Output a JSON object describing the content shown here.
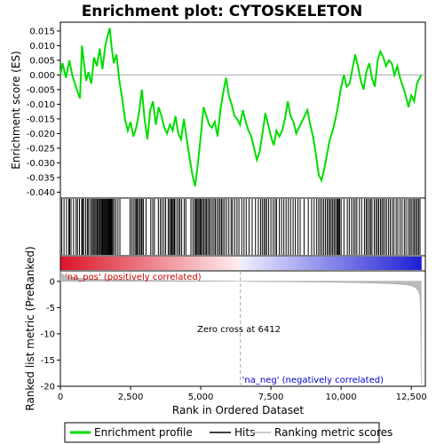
{
  "chart_data": {
    "type": "line",
    "title": "Enrichment plot: CYTOSKELETON",
    "top_panel": {
      "ylabel": "Enrichment score (ES)",
      "ylim": [
        -0.042,
        0.018
      ],
      "yticks": [
        0.015,
        0.01,
        0.005,
        0.0,
        -0.005,
        -0.01,
        -0.015,
        -0.02,
        -0.025,
        -0.03,
        -0.035,
        -0.04
      ],
      "ytick_labels": [
        "0.015",
        "0.010",
        "0.005",
        "0.000",
        "-0.005",
        "-0.010",
        "-0.015",
        "-0.020",
        "-0.025",
        "-0.030",
        "-0.035",
        "-0.040"
      ],
      "series": [
        {
          "name": "Enrichment profile",
          "color": "#00dd00",
          "x": [
            0,
            80,
            200,
            320,
            420,
            520,
            620,
            700,
            770,
            840,
            920,
            1000,
            1100,
            1200,
            1300,
            1400,
            1500,
            1600,
            1700,
            1760,
            1820,
            1900,
            2000,
            2100,
            2200,
            2300,
            2400,
            2500,
            2600,
            2700,
            2800,
            2900,
            3000,
            3100,
            3200,
            3300,
            3400,
            3500,
            3600,
            3700,
            3800,
            3900,
            4000,
            4100,
            4200,
            4300,
            4400,
            4500,
            4600,
            4700,
            4800,
            4900,
            5000,
            5100,
            5200,
            5300,
            5400,
            5500,
            5600,
            5700,
            5800,
            5900,
            6000,
            6100,
            6200,
            6300,
            6400,
            6500,
            6600,
            6700,
            6800,
            6900,
            7000,
            7100,
            7200,
            7300,
            7400,
            7500,
            7600,
            7700,
            7800,
            7900,
            8000,
            8100,
            8200,
            8300,
            8400,
            8500,
            8600,
            8700,
            8800,
            8900,
            9000,
            9100,
            9200,
            9300,
            9400,
            9500,
            9600,
            9700,
            9800,
            9900,
            10000,
            10100,
            10200,
            10300,
            10400,
            10500,
            10600,
            10700,
            10800,
            10900,
            11000,
            11100,
            11200,
            11300,
            11400,
            11500,
            11600,
            11700,
            11800,
            11900,
            12000,
            12100,
            12200,
            12300,
            12400,
            12500,
            12600,
            12700,
            12800,
            12850
          ],
          "y": [
            0.0,
            0.004,
            -0.001,
            0.005,
            0.0,
            -0.003,
            -0.006,
            -0.008,
            0.01,
            0.004,
            -0.002,
            0.001,
            -0.003,
            0.006,
            0.003,
            0.009,
            0.002,
            0.01,
            0.014,
            0.016,
            0.01,
            0.004,
            0.007,
            -0.002,
            -0.008,
            -0.015,
            -0.019,
            -0.016,
            -0.021,
            -0.018,
            -0.013,
            -0.005,
            -0.015,
            -0.022,
            -0.012,
            -0.009,
            -0.017,
            -0.011,
            -0.014,
            -0.018,
            -0.02,
            -0.017,
            -0.019,
            -0.014,
            -0.02,
            -0.022,
            -0.015,
            -0.022,
            -0.028,
            -0.034,
            -0.038,
            -0.03,
            -0.021,
            -0.011,
            -0.014,
            -0.017,
            -0.018,
            -0.016,
            -0.021,
            -0.012,
            -0.006,
            -0.001,
            -0.007,
            -0.01,
            -0.014,
            -0.015,
            -0.017,
            -0.012,
            -0.016,
            -0.019,
            -0.021,
            -0.025,
            -0.029,
            -0.026,
            -0.02,
            -0.013,
            -0.017,
            -0.021,
            -0.024,
            -0.019,
            -0.021,
            -0.019,
            -0.015,
            -0.009,
            -0.014,
            -0.016,
            -0.02,
            -0.018,
            -0.016,
            -0.014,
            -0.012,
            -0.017,
            -0.021,
            -0.027,
            -0.034,
            -0.036,
            -0.032,
            -0.027,
            -0.022,
            -0.019,
            -0.015,
            -0.01,
            -0.004,
            0.0,
            -0.004,
            -0.003,
            0.002,
            0.007,
            0.003,
            -0.002,
            -0.005,
            0.001,
            0.004,
            -0.001,
            -0.004,
            0.005,
            0.008,
            0.006,
            0.003,
            0.005,
            0.004,
            0.0,
            0.003,
            -0.001,
            -0.004,
            -0.007,
            -0.011,
            -0.007,
            -0.009,
            -0.003,
            -0.001,
            0.0
          ]
        }
      ]
    },
    "hits_panel": {
      "legend_name": "Hits",
      "hit_positions": [
        50,
        130,
        220,
        300,
        330,
        380,
        470,
        560,
        610,
        680,
        760,
        790,
        830,
        900,
        960,
        990,
        1050,
        1110,
        1140,
        1190,
        1230,
        1270,
        1310,
        1350,
        1390,
        1420,
        1460,
        1490,
        1510,
        1540,
        1570,
        1600,
        1620,
        1650,
        1680,
        1700,
        1720,
        1750,
        1770,
        1790,
        1820,
        1840,
        1870,
        1920,
        1980,
        2050,
        2120,
        2480,
        2540,
        2600,
        2660,
        2700,
        2740,
        2780,
        2830,
        2880,
        2910,
        2960,
        3050,
        3220,
        3290,
        3350,
        3490,
        3560,
        3620,
        3690,
        3750,
        3840,
        3890,
        3930,
        3970,
        4010,
        4050,
        4080,
        4150,
        4210,
        4260,
        4320,
        4410,
        4470,
        4650,
        4720,
        4780,
        4820,
        4860,
        4900,
        4940,
        4980,
        5020,
        5060,
        5110,
        5160,
        5200,
        5250,
        5300,
        5350,
        5410,
        5470,
        5520,
        5580,
        5640,
        5690,
        5740,
        5790,
        5850,
        5920,
        6000,
        6080,
        6130,
        6210,
        6290,
        6360,
        6460,
        6540,
        6620,
        6720,
        6830,
        6950,
        7050,
        7130,
        7190,
        7250,
        7300,
        7350,
        7420,
        7500,
        7580,
        7650,
        7700,
        7800,
        7880,
        7960,
        8040,
        8120,
        8200,
        8290,
        8370,
        8460,
        8540,
        8680,
        8830,
        8950,
        9040,
        9130,
        9200,
        9260,
        9320,
        9380,
        9440,
        9500,
        9550,
        9600,
        9650,
        9700,
        9750,
        9800,
        9850,
        9880,
        9920,
        9950,
        10000,
        10100,
        10220,
        10290,
        10370,
        10440,
        10500,
        10560,
        10650,
        10730,
        10830,
        10890,
        10940,
        11000,
        11050,
        11100,
        11180,
        11240,
        11290,
        11340,
        11400,
        11450,
        11500,
        11560,
        11620,
        11690,
        11750,
        11820,
        11880,
        11960,
        12020,
        12100,
        12170,
        12250,
        12310,
        12390,
        12450,
        12500,
        12560,
        12610,
        12660,
        12710,
        12760,
        12810
      ]
    },
    "bottom_panel": {
      "ylabel": "Ranked list metric (PreRanked)",
      "xlabel": "Rank in Ordered Dataset",
      "ylim": [
        -20,
        2
      ],
      "yticks": [
        0,
        -5,
        -10,
        -15,
        -20
      ],
      "ytick_labels": [
        "0",
        "-5",
        "-10",
        "-15",
        "-20"
      ],
      "xlim": [
        0,
        13000
      ],
      "xticks": [
        0,
        2500,
        5000,
        7500,
        10000,
        12500
      ],
      "xtick_labels": [
        "0",
        "2,500",
        "5,000",
        "7,500",
        "10,000",
        "12,500"
      ],
      "metric_series": {
        "name": "Ranking metric scores",
        "x": [
          0,
          30,
          80,
          150,
          250,
          400,
          600,
          1000,
          2000,
          3000,
          4000,
          5000,
          6000,
          6412,
          7000,
          8000,
          9000,
          10000,
          11000,
          11500,
          12000,
          12300,
          12500,
          12650,
          12750,
          12800,
          12830,
          12850
        ],
        "y": [
          2.0,
          1.6,
          1.3,
          1.1,
          0.9,
          0.75,
          0.6,
          0.45,
          0.3,
          0.2,
          0.12,
          0.07,
          0.03,
          0.0,
          -0.04,
          -0.08,
          -0.13,
          -0.2,
          -0.3,
          -0.38,
          -0.5,
          -0.65,
          -0.85,
          -1.2,
          -1.8,
          -2.6,
          -5.0,
          -19.5
        ]
      },
      "zero_cross_label": "Zero cross at 6412",
      "zero_cross": 6412,
      "pos_label": "'na_pos' (positively correlated)",
      "neg_label": "'na_neg' (negatively correlated)"
    },
    "legend": [
      {
        "name": "Enrichment profile",
        "color": "#00dd00"
      },
      {
        "name": "Hits",
        "color": "#000000"
      },
      {
        "name": "Ranking metric scores",
        "color": "#bbbbbb"
      }
    ],
    "colors": {
      "pos_label": "#cc0000",
      "neg_label": "#0000cc",
      "profile": "#00dd00"
    }
  }
}
